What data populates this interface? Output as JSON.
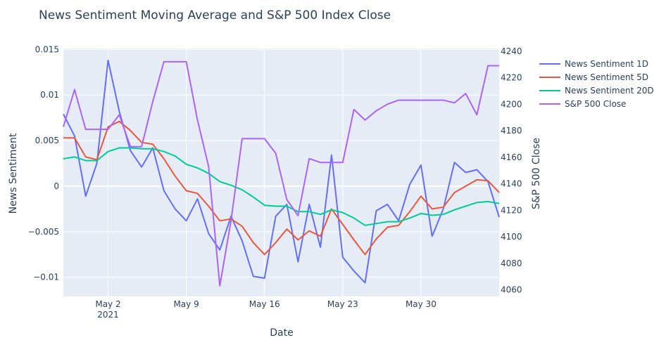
{
  "chart_data": {
    "type": "line",
    "title": "News Sentiment Moving Average and S&P 500 Index Close",
    "xlabel": "Date",
    "ylabel": "News Sentiment",
    "y2label": "S&P 500 Close",
    "x_ticks": [
      {
        "date": "2021-05-02",
        "label": "May 2",
        "sublabel": "2021"
      },
      {
        "date": "2021-05-09",
        "label": "May 9",
        "sublabel": ""
      },
      {
        "date": "2021-05-16",
        "label": "May 16",
        "sublabel": ""
      },
      {
        "date": "2021-05-23",
        "label": "May 23",
        "sublabel": ""
      },
      {
        "date": "2021-05-30",
        "label": "May 30",
        "sublabel": ""
      }
    ],
    "y_ticks": [
      "0.015",
      "0.01",
      "0.005",
      "0",
      "−0.005",
      "−0.01"
    ],
    "y_tick_values": [
      0.015,
      0.01,
      0.005,
      0,
      -0.005,
      -0.01
    ],
    "y2_ticks": [
      4240,
      4220,
      4200,
      4180,
      4160,
      4140,
      4120,
      4100,
      4080,
      4060
    ],
    "xlim": [
      "2021-04-28",
      "2021-06-06"
    ],
    "ylim": [
      -0.0121,
      0.0151
    ],
    "y2lim": [
      4055,
      4242
    ],
    "grid": true,
    "legend_position": "right",
    "x": [
      "2021-04-28",
      "2021-04-29",
      "2021-04-30",
      "2021-05-01",
      "2021-05-02",
      "2021-05-03",
      "2021-05-04",
      "2021-05-05",
      "2021-05-06",
      "2021-05-07",
      "2021-05-08",
      "2021-05-09",
      "2021-05-10",
      "2021-05-11",
      "2021-05-12",
      "2021-05-13",
      "2021-05-14",
      "2021-05-15",
      "2021-05-16",
      "2021-05-17",
      "2021-05-18",
      "2021-05-19",
      "2021-05-20",
      "2021-05-21",
      "2021-05-22",
      "2021-05-23",
      "2021-05-24",
      "2021-05-25",
      "2021-05-26",
      "2021-05-27",
      "2021-05-28",
      "2021-05-29",
      "2021-05-30",
      "2021-05-31",
      "2021-06-01",
      "2021-06-02",
      "2021-06-03",
      "2021-06-04",
      "2021-06-05",
      "2021-06-06"
    ],
    "series": [
      {
        "name": "News Sentiment 1D",
        "color": "#636efa",
        "axis": "y",
        "values": [
          0.0079,
          0.0055,
          -0.0011,
          0.0025,
          0.0138,
          0.0082,
          0.0039,
          0.0021,
          0.0042,
          -0.0005,
          -0.0025,
          -0.0038,
          -0.0014,
          -0.0052,
          -0.007,
          -0.0033,
          -0.006,
          -0.0099,
          -0.0101,
          -0.0033,
          -0.002,
          -0.0083,
          -0.002,
          -0.0067,
          0.0034,
          -0.0078,
          -0.0093,
          -0.0106,
          -0.0027,
          -0.002,
          -0.0038,
          0.0002,
          0.0023,
          -0.0055,
          -0.0025,
          0.0026,
          0.0015,
          0.0018,
          0.0005,
          -0.0034
        ]
      },
      {
        "name": "News Sentiment 5D",
        "color": "#ef553b",
        "axis": "y",
        "values": [
          0.0053,
          0.0053,
          0.0032,
          0.0029,
          0.0065,
          0.0071,
          0.0061,
          0.0048,
          0.0046,
          0.003,
          0.0011,
          -0.0005,
          -0.0008,
          -0.0022,
          -0.0038,
          -0.0036,
          -0.0044,
          -0.0062,
          -0.0075,
          -0.0062,
          -0.0047,
          -0.0059,
          -0.0049,
          -0.0055,
          -0.0025,
          -0.0042,
          -0.0059,
          -0.0075,
          -0.0058,
          -0.0045,
          -0.0043,
          -0.0028,
          -0.0011,
          -0.0025,
          -0.0023,
          -0.0007,
          0.0,
          0.0007,
          0.0006,
          -0.0007
        ]
      },
      {
        "name": "News Sentiment 20D",
        "color": "#00cc96",
        "axis": "y",
        "values": [
          0.003,
          0.0032,
          0.0028,
          0.0028,
          0.0038,
          0.0042,
          0.0042,
          0.0041,
          0.0041,
          0.0038,
          0.0033,
          0.0024,
          0.002,
          0.0014,
          0.0005,
          0.0001,
          -0.0004,
          -0.0012,
          -0.0021,
          -0.0022,
          -0.0022,
          -0.0028,
          -0.0028,
          -0.0031,
          -0.0026,
          -0.0029,
          -0.0035,
          -0.0043,
          -0.0041,
          -0.0039,
          -0.0039,
          -0.0035,
          -0.003,
          -0.0032,
          -0.0031,
          -0.0026,
          -0.0022,
          -0.0018,
          -0.0017,
          -0.0019
        ]
      },
      {
        "name": "S&P 500 Close",
        "color": "#ab63fa",
        "axis": "y2",
        "values": [
          4183,
          4211,
          4181,
          4181,
          4181,
          4192,
          4168,
          4168,
          4202,
          4232,
          4232,
          4232,
          4188,
          4153,
          4063,
          4112,
          4174,
          4174,
          4174,
          4163,
          4128,
          4116,
          4159,
          4156,
          4156,
          4156,
          4196,
          4188,
          4195,
          4200,
          4203,
          4203,
          4203,
          4203,
          4203,
          4201,
          4208,
          4192,
          4229,
          4229
        ]
      }
    ]
  }
}
